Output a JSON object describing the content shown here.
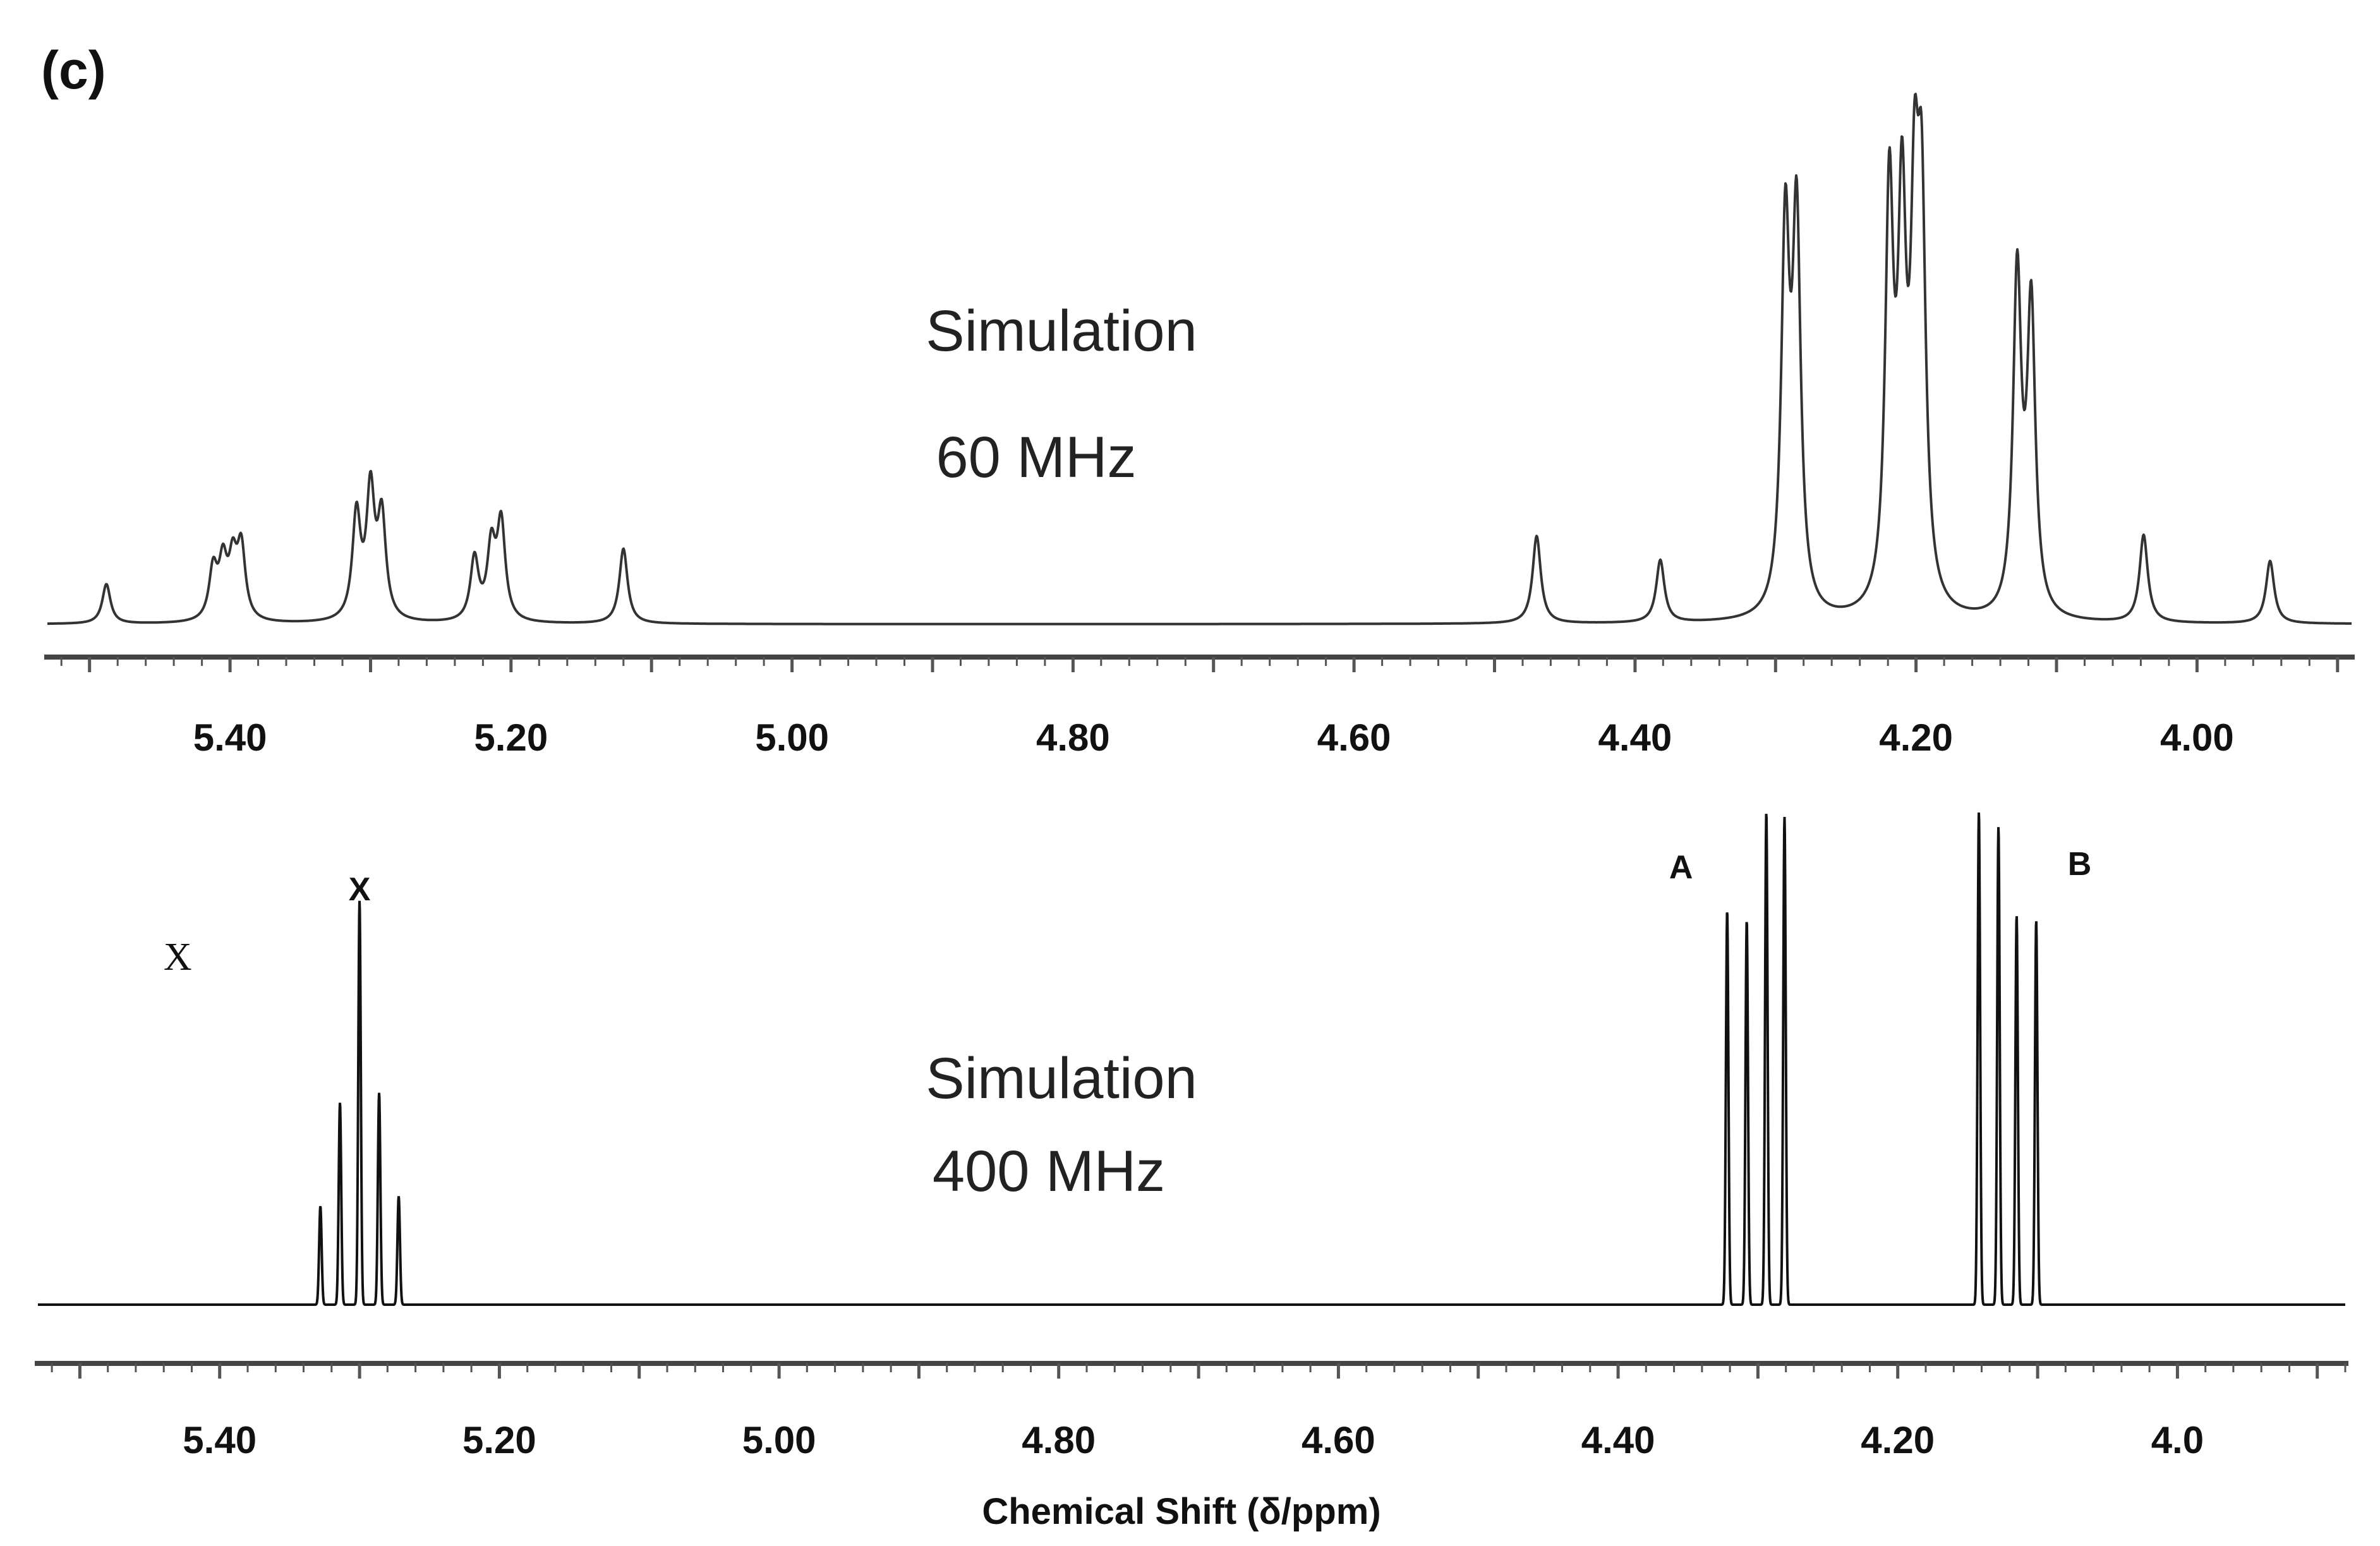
{
  "panel_label": "(c)",
  "chart_data": [
    {
      "type": "line",
      "title": "Simulation",
      "subtitle": "60 MHz",
      "xlabel": "",
      "ylabel": "",
      "x_axis_reversed": true,
      "xlim": [
        5.53,
        3.89
      ],
      "ylim": [
        0,
        1.0
      ],
      "tick_values": [
        5.4,
        5.2,
        5.0,
        4.8,
        4.6,
        4.4,
        4.2,
        4.0
      ],
      "tick_labels": [
        "5.40",
        "5.20",
        "5.00",
        "4.80",
        "4.60",
        "4.40",
        "4.20",
        "4.00"
      ],
      "peaks": [
        {
          "x": 5.488,
          "y": 0.095
        },
        {
          "x": 5.412,
          "y": 0.12
        },
        {
          "x": 5.405,
          "y": 0.13
        },
        {
          "x": 5.398,
          "y": 0.13
        },
        {
          "x": 5.392,
          "y": 0.17
        },
        {
          "x": 5.31,
          "y": 0.25
        },
        {
          "x": 5.3,
          "y": 0.3
        },
        {
          "x": 5.292,
          "y": 0.24
        },
        {
          "x": 5.226,
          "y": 0.15
        },
        {
          "x": 5.214,
          "y": 0.17
        },
        {
          "x": 5.207,
          "y": 0.23
        },
        {
          "x": 5.12,
          "y": 0.18
        },
        {
          "x": 4.47,
          "y": 0.21
        },
        {
          "x": 4.382,
          "y": 0.15
        },
        {
          "x": 4.293,
          "y": 0.9
        },
        {
          "x": 4.285,
          "y": 0.92
        },
        {
          "x": 4.219,
          "y": 0.97
        },
        {
          "x": 4.21,
          "y": 0.88
        },
        {
          "x": 4.201,
          "y": 0.82
        },
        {
          "x": 4.196,
          "y": 0.86
        },
        {
          "x": 4.128,
          "y": 0.81
        },
        {
          "x": 4.118,
          "y": 0.73
        },
        {
          "x": 4.038,
          "y": 0.21
        },
        {
          "x": 3.948,
          "y": 0.15
        }
      ]
    },
    {
      "type": "line",
      "title": "Simulation",
      "subtitle": "400 MHz",
      "xlabel": "Chemical Shift (δ/ppm)",
      "ylabel": "",
      "x_axis_reversed": true,
      "xlim": [
        5.53,
        3.88
      ],
      "ylim": [
        0,
        1.0
      ],
      "tick_values": [
        5.4,
        5.2,
        5.0,
        4.8,
        4.6,
        4.4,
        4.2,
        4.0
      ],
      "tick_labels": [
        "5.40",
        "5.20",
        "5.00",
        "4.80",
        "4.60",
        "4.40",
        "4.20",
        "4.0"
      ],
      "annotations": [
        {
          "text": "X",
          "x": 5.3
        },
        {
          "text": "A",
          "x": 4.355
        },
        {
          "text": "B",
          "x": 4.07
        },
        {
          "text": "X",
          "x": 5.43
        }
      ],
      "peaks": [
        {
          "x": 5.328,
          "y": 0.2
        },
        {
          "x": 5.314,
          "y": 0.41
        },
        {
          "x": 5.3,
          "y": 0.82
        },
        {
          "x": 5.286,
          "y": 0.43
        },
        {
          "x": 5.272,
          "y": 0.22
        },
        {
          "x": 4.322,
          "y": 0.8
        },
        {
          "x": 4.308,
          "y": 0.78
        },
        {
          "x": 4.294,
          "y": 1.0
        },
        {
          "x": 4.281,
          "y": 0.99
        },
        {
          "x": 4.142,
          "y": 1.0
        },
        {
          "x": 4.128,
          "y": 0.97
        },
        {
          "x": 4.115,
          "y": 0.79
        },
        {
          "x": 4.101,
          "y": 0.78
        }
      ]
    }
  ]
}
